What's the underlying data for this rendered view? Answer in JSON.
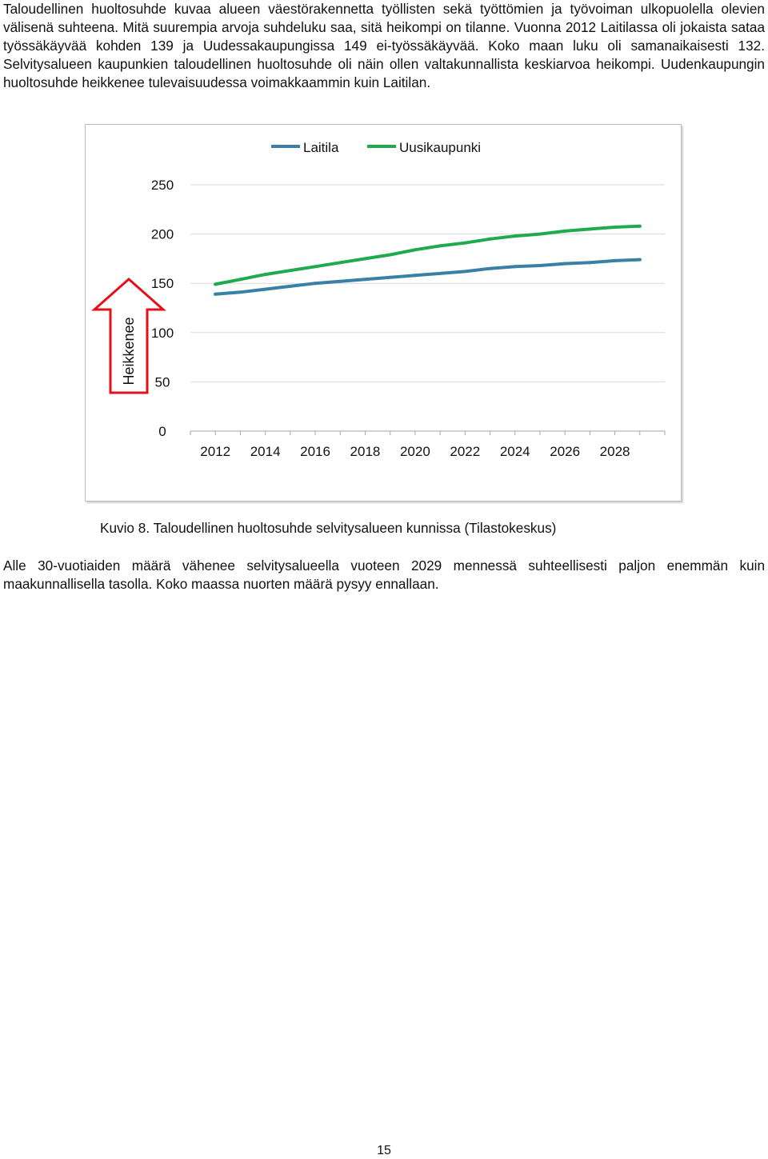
{
  "paragraphs": {
    "top": "Taloudellinen huoltosuhde kuvaa alueen väestörakennetta työllisten sekä työttömien ja työvoiman ulkopuolella olevien välisenä suhteena. Mitä suurempia arvoja suhdeluku saa, sitä heikompi on tilanne. Vuonna 2012 Laitilassa oli jokaista sataa työssäkäyvää kohden 139 ja Uudessakaupungissa 149 ei-työssäkäyvää. Koko maan luku oli samanaikaisesti 132. Selvitysalueen kaupunkien taloudellinen huoltosuhde oli näin ollen valtakunnallista keskiarvoa heikompi. Uudenkaupungin huoltosuhde heikkenee tulevaisuudessa voimakkaammin kuin Laitilan.",
    "bottom": "Alle 30-vuotiaiden määrä vähenee selvitysalueella vuoteen 2029 mennessä suhteellisesti paljon enemmän kuin maakunnallisella tasolla. Koko maassa nuorten määrä pysyy ennallaan."
  },
  "caption": "Kuvio 8. Taloudellinen huoltosuhde selvitysalueen kunnissa (Tilastokeskus)",
  "page_number": "15",
  "chart_data": {
    "type": "line",
    "title": "",
    "xlabel": "",
    "ylabel": "",
    "ylim": [
      0,
      250
    ],
    "yticks": [
      "0",
      "50",
      "100",
      "150",
      "200",
      "250"
    ],
    "xticks": [
      "2012",
      "2014",
      "2016",
      "2018",
      "2020",
      "2022",
      "2024",
      "2026",
      "2028"
    ],
    "grid": true,
    "legend_position": "top",
    "annotation": "Heikkenee",
    "x": [
      2012,
      2013,
      2014,
      2015,
      2016,
      2017,
      2018,
      2019,
      2020,
      2021,
      2022,
      2023,
      2024,
      2025,
      2026,
      2027,
      2028,
      2029
    ],
    "series": [
      {
        "name": "Laitila",
        "color": "#3a7fa6",
        "values": [
          139,
          141,
          144,
          147,
          150,
          152,
          154,
          156,
          158,
          160,
          162,
          165,
          167,
          168,
          170,
          171,
          173,
          174
        ]
      },
      {
        "name": "Uusikaupunki",
        "color": "#1faa4e",
        "values": [
          149,
          154,
          159,
          163,
          167,
          171,
          175,
          179,
          184,
          188,
          191,
          195,
          198,
          200,
          203,
          205,
          207,
          208
        ]
      }
    ]
  }
}
